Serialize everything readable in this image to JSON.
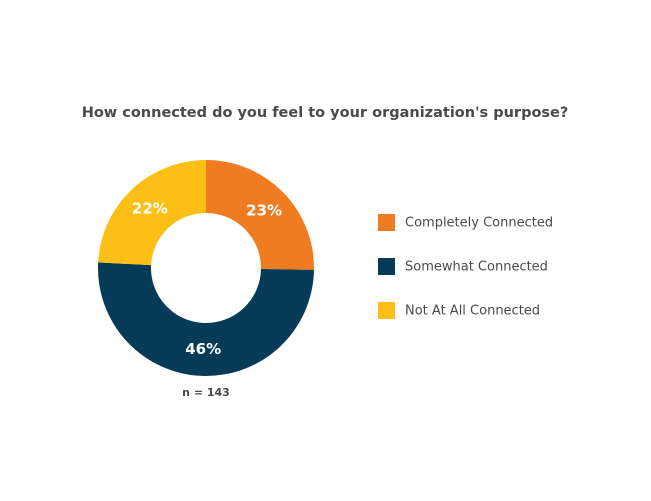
{
  "chart_data": {
    "type": "donut",
    "title": "How connected do you feel to your organization's purpose?",
    "categories": [
      "Completely Connected",
      "Somewhat Connected",
      "Not At All Connected"
    ],
    "values": [
      23,
      46,
      22
    ],
    "value_labels": [
      "23%",
      "46%",
      "22%"
    ],
    "colors": [
      "#f07c22",
      "#063b57",
      "#fbbf16"
    ],
    "note": "n = 143"
  }
}
